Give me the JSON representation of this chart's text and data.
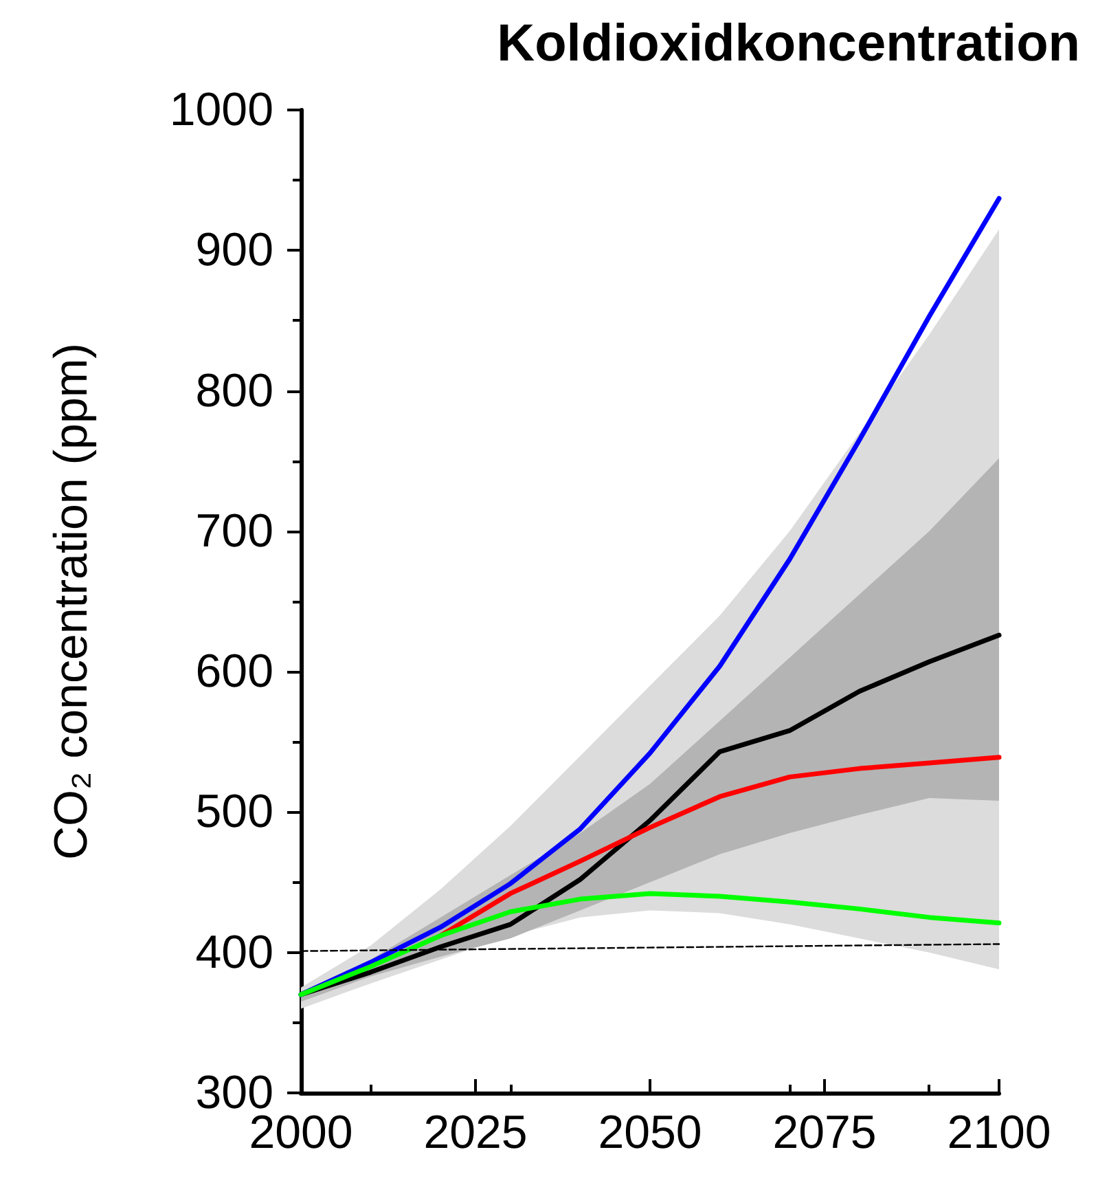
{
  "chart_data": {
    "type": "line",
    "title": "Koldioxidkoncentration",
    "ylabel": "CO₂ concentration (ppm)",
    "x": [
      2000,
      2010,
      2020,
      2030,
      2040,
      2050,
      2060,
      2070,
      2080,
      2090,
      2100
    ],
    "xlim": [
      2000,
      2100
    ],
    "xticks": [
      2000,
      2025,
      2050,
      2075,
      2100
    ],
    "ylim": [
      300,
      1000
    ],
    "yticks": [
      300,
      400,
      500,
      600,
      700,
      800,
      900,
      1000
    ],
    "grid": false,
    "marker": "none",
    "series": [
      {
        "color": "#dcdcdc",
        "values": [
          null,
          null,
          null,
          null,
          null,
          null,
          null,
          null,
          null,
          null,
          null
        ],
        "lower": [
          360,
          378,
          395,
          412,
          425,
          430,
          428,
          420,
          410,
          400,
          388
        ],
        "upper": [
          375,
          405,
          445,
          490,
          540,
          590,
          640,
          700,
          770,
          840,
          915
        ]
      },
      {
        "color": "#b4b4b4",
        "values": [
          null,
          null,
          null,
          null,
          null,
          null,
          null,
          null,
          null,
          null,
          null
        ],
        "lower": [
          365,
          383,
          397,
          410,
          430,
          450,
          470,
          485,
          498,
          510,
          508
        ],
        "upper": [
          372,
          395,
          425,
          455,
          485,
          520,
          565,
          610,
          655,
          700,
          752
        ]
      },
      {
        "color": "#000000",
        "values": [
          370,
          386,
          404,
          420,
          452,
          494,
          543,
          558,
          586,
          607,
          626
        ]
      },
      {
        "color": "#0000ff",
        "values": [
          370,
          393,
          418,
          449,
          488,
          542,
          604,
          680,
          765,
          853,
          937
        ]
      },
      {
        "color": "#ff0000",
        "values": [
          null,
          null,
          412,
          442,
          465,
          489,
          511,
          525,
          531,
          535,
          539
        ]
      },
      {
        "color": "#00ff00",
        "values": [
          370,
          390,
          412,
          429,
          438,
          442,
          440,
          436,
          431,
          425,
          421
        ]
      },
      {
        "color": "#000000",
        "line_style": "dashed",
        "x": [
          2000,
          2100
        ],
        "values": [
          401,
          406
        ]
      }
    ]
  }
}
